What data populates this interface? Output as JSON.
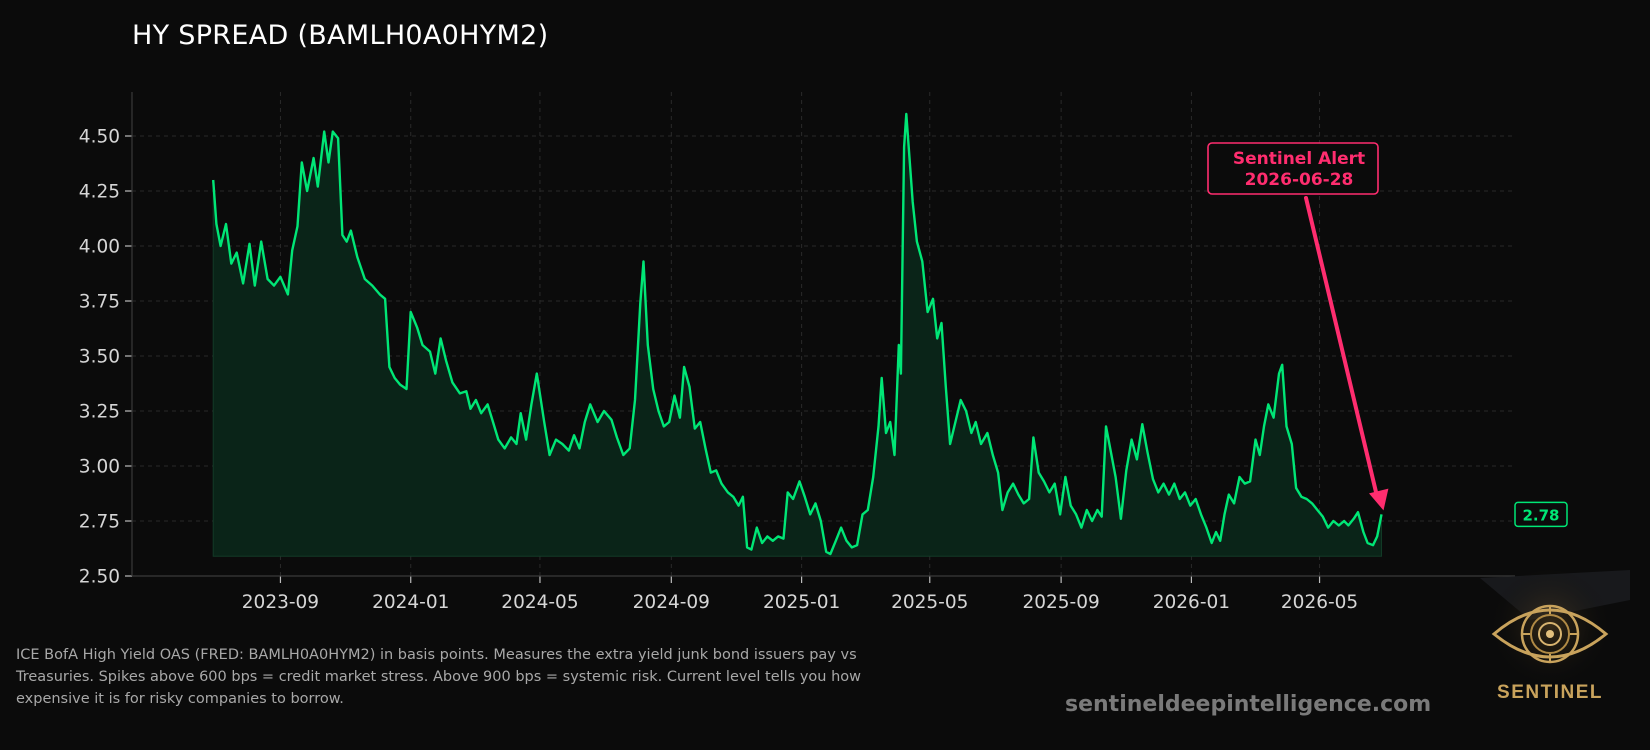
{
  "colors": {
    "background": "#0b0b0b",
    "line": "#00e676",
    "fill": "#0a2418",
    "alert": "#ff2d6f",
    "grid": "#2a2a2a",
    "text": "#d6d6d6",
    "logo_gold": "#c9a35c"
  },
  "title": "HY SPREAD (BAMLH0A0HYM2)",
  "description": "ICE BofA High Yield OAS (FRED: BAMLH0A0HYM2) in basis points. Measures the extra yield junk bond issuers pay vs Treasuries. Spikes above 600 bps = credit market stress. Above 900 bps = systemic risk. Current level tells you how expensive it is for risky companies to borrow.",
  "website": "sentineldeepintelligence.com",
  "logo": {
    "text": "SENTINEL",
    "icon": "eye-icon"
  },
  "chart_data": {
    "type": "area",
    "title": "HY SPREAD (BAMLH0A0HYM2)",
    "xlabel": "",
    "ylabel": "",
    "grid": true,
    "ylim": [
      2.5,
      4.7
    ],
    "xlim": [
      "2023-04-15",
      "2026-10-31"
    ],
    "x_ticks": [
      "2023-09",
      "2024-01",
      "2024-05",
      "2024-09",
      "2025-01",
      "2025-05",
      "2025-09",
      "2026-01",
      "2026-05"
    ],
    "y_ticks": [
      "2.50",
      "2.75",
      "3.00",
      "3.25",
      "3.50",
      "3.75",
      "4.00",
      "4.25",
      "4.50"
    ],
    "series": [
      {
        "points": [
          [
            "2023-06-30",
            4.3
          ],
          [
            "2023-07-03",
            4.1
          ],
          [
            "2023-07-07",
            4.0
          ],
          [
            "2023-07-12",
            4.1
          ],
          [
            "2023-07-17",
            3.92
          ],
          [
            "2023-07-22",
            3.97
          ],
          [
            "2023-07-28",
            3.83
          ],
          [
            "2023-08-03",
            4.01
          ],
          [
            "2023-08-08",
            3.82
          ],
          [
            "2023-08-14",
            4.02
          ],
          [
            "2023-08-20",
            3.85
          ],
          [
            "2023-08-26",
            3.82
          ],
          [
            "2023-09-01",
            3.86
          ],
          [
            "2023-09-08",
            3.78
          ],
          [
            "2023-09-12",
            3.98
          ],
          [
            "2023-09-17",
            4.09
          ],
          [
            "2023-09-21",
            4.38
          ],
          [
            "2023-09-26",
            4.25
          ],
          [
            "2023-10-02",
            4.4
          ],
          [
            "2023-10-06",
            4.27
          ],
          [
            "2023-10-12",
            4.52
          ],
          [
            "2023-10-16",
            4.38
          ],
          [
            "2023-10-20",
            4.52
          ],
          [
            "2023-10-25",
            4.49
          ],
          [
            "2023-10-29",
            4.05
          ],
          [
            "2023-11-02",
            4.02
          ],
          [
            "2023-11-06",
            4.07
          ],
          [
            "2023-11-12",
            3.95
          ],
          [
            "2023-11-19",
            3.85
          ],
          [
            "2023-11-26",
            3.82
          ],
          [
            "2023-12-03",
            3.78
          ],
          [
            "2023-12-08",
            3.76
          ],
          [
            "2023-12-12",
            3.45
          ],
          [
            "2023-12-17",
            3.4
          ],
          [
            "2023-12-22",
            3.37
          ],
          [
            "2023-12-28",
            3.35
          ],
          [
            "2024-01-01",
            3.7
          ],
          [
            "2024-01-07",
            3.63
          ],
          [
            "2024-01-12",
            3.55
          ],
          [
            "2024-01-19",
            3.52
          ],
          [
            "2024-01-24",
            3.42
          ],
          [
            "2024-01-29",
            3.58
          ],
          [
            "2024-02-03",
            3.48
          ],
          [
            "2024-02-09",
            3.38
          ],
          [
            "2024-02-16",
            3.33
          ],
          [
            "2024-02-22",
            3.34
          ],
          [
            "2024-02-26",
            3.26
          ],
          [
            "2024-03-02",
            3.3
          ],
          [
            "2024-03-07",
            3.24
          ],
          [
            "2024-03-13",
            3.28
          ],
          [
            "2024-03-18",
            3.2
          ],
          [
            "2024-03-23",
            3.12
          ],
          [
            "2024-03-29",
            3.08
          ],
          [
            "2024-04-04",
            3.13
          ],
          [
            "2024-04-09",
            3.1
          ],
          [
            "2024-04-13",
            3.24
          ],
          [
            "2024-04-18",
            3.12
          ],
          [
            "2024-04-23",
            3.28
          ],
          [
            "2024-04-28",
            3.42
          ],
          [
            "2024-05-05",
            3.2
          ],
          [
            "2024-05-10",
            3.05
          ],
          [
            "2024-05-16",
            3.12
          ],
          [
            "2024-05-22",
            3.1
          ],
          [
            "2024-05-28",
            3.07
          ],
          [
            "2024-06-02",
            3.14
          ],
          [
            "2024-06-07",
            3.08
          ],
          [
            "2024-06-12",
            3.2
          ],
          [
            "2024-06-17",
            3.28
          ],
          [
            "2024-06-24",
            3.2
          ],
          [
            "2024-06-30",
            3.25
          ],
          [
            "2024-07-07",
            3.21
          ],
          [
            "2024-07-12",
            3.13
          ],
          [
            "2024-07-18",
            3.05
          ],
          [
            "2024-07-24",
            3.08
          ],
          [
            "2024-07-29",
            3.3
          ],
          [
            "2024-08-03",
            3.74
          ],
          [
            "2024-08-06",
            3.93
          ],
          [
            "2024-08-10",
            3.55
          ],
          [
            "2024-08-15",
            3.35
          ],
          [
            "2024-08-20",
            3.25
          ],
          [
            "2024-08-25",
            3.18
          ],
          [
            "2024-08-30",
            3.2
          ],
          [
            "2024-09-04",
            3.32
          ],
          [
            "2024-09-09",
            3.22
          ],
          [
            "2024-09-13",
            3.45
          ],
          [
            "2024-09-18",
            3.36
          ],
          [
            "2024-09-23",
            3.17
          ],
          [
            "2024-09-28",
            3.2
          ],
          [
            "2024-10-03",
            3.08
          ],
          [
            "2024-10-08",
            2.97
          ],
          [
            "2024-10-13",
            2.98
          ],
          [
            "2024-10-18",
            2.92
          ],
          [
            "2024-10-24",
            2.88
          ],
          [
            "2024-10-29",
            2.86
          ],
          [
            "2024-11-03",
            2.82
          ],
          [
            "2024-11-07",
            2.86
          ],
          [
            "2024-11-11",
            2.63
          ],
          [
            "2024-11-15",
            2.62
          ],
          [
            "2024-11-20",
            2.72
          ],
          [
            "2024-11-25",
            2.65
          ],
          [
            "2024-11-30",
            2.68
          ],
          [
            "2024-12-05",
            2.66
          ],
          [
            "2024-12-10",
            2.68
          ],
          [
            "2024-12-15",
            2.67
          ],
          [
            "2024-12-19",
            2.88
          ],
          [
            "2024-12-24",
            2.85
          ],
          [
            "2024-12-30",
            2.93
          ],
          [
            "2025-01-04",
            2.86
          ],
          [
            "2025-01-09",
            2.78
          ],
          [
            "2025-01-14",
            2.83
          ],
          [
            "2025-01-19",
            2.75
          ],
          [
            "2025-01-24",
            2.61
          ],
          [
            "2025-01-28",
            2.6
          ],
          [
            "2025-02-02",
            2.66
          ],
          [
            "2025-02-07",
            2.72
          ],
          [
            "2025-02-12",
            2.66
          ],
          [
            "2025-02-17",
            2.63
          ],
          [
            "2025-02-22",
            2.64
          ],
          [
            "2025-02-27",
            2.78
          ],
          [
            "2025-03-04",
            2.8
          ],
          [
            "2025-03-09",
            2.95
          ],
          [
            "2025-03-14",
            3.18
          ],
          [
            "2025-03-17",
            3.4
          ],
          [
            "2025-03-21",
            3.15
          ],
          [
            "2025-03-25",
            3.2
          ],
          [
            "2025-03-29",
            3.05
          ],
          [
            "2025-04-02",
            3.55
          ],
          [
            "2025-04-04",
            3.42
          ],
          [
            "2025-04-07",
            4.45
          ],
          [
            "2025-04-09",
            4.6
          ],
          [
            "2025-04-12",
            4.4
          ],
          [
            "2025-04-15",
            4.2
          ],
          [
            "2025-04-19",
            4.02
          ],
          [
            "2025-04-24",
            3.93
          ],
          [
            "2025-04-29",
            3.7
          ],
          [
            "2025-05-04",
            3.76
          ],
          [
            "2025-05-08",
            3.58
          ],
          [
            "2025-05-12",
            3.65
          ],
          [
            "2025-05-16",
            3.36
          ],
          [
            "2025-05-20",
            3.1
          ],
          [
            "2025-05-25",
            3.2
          ],
          [
            "2025-05-30",
            3.3
          ],
          [
            "2025-06-04",
            3.25
          ],
          [
            "2025-06-09",
            3.15
          ],
          [
            "2025-06-13",
            3.2
          ],
          [
            "2025-06-18",
            3.1
          ],
          [
            "2025-06-24",
            3.15
          ],
          [
            "2025-06-29",
            3.05
          ],
          [
            "2025-07-04",
            2.97
          ],
          [
            "2025-07-08",
            2.8
          ],
          [
            "2025-07-13",
            2.88
          ],
          [
            "2025-07-18",
            2.92
          ],
          [
            "2025-07-23",
            2.87
          ],
          [
            "2025-07-28",
            2.83
          ],
          [
            "2025-08-02",
            2.85
          ],
          [
            "2025-08-06",
            3.13
          ],
          [
            "2025-08-11",
            2.97
          ],
          [
            "2025-08-16",
            2.93
          ],
          [
            "2025-08-21",
            2.88
          ],
          [
            "2025-08-26",
            2.92
          ],
          [
            "2025-08-31",
            2.78
          ],
          [
            "2025-09-05",
            2.95
          ],
          [
            "2025-09-10",
            2.82
          ],
          [
            "2025-09-15",
            2.78
          ],
          [
            "2025-09-20",
            2.72
          ],
          [
            "2025-09-25",
            2.8
          ],
          [
            "2025-09-30",
            2.75
          ],
          [
            "2025-10-05",
            2.8
          ],
          [
            "2025-10-09",
            2.77
          ],
          [
            "2025-10-13",
            3.18
          ],
          [
            "2025-10-17",
            3.08
          ],
          [
            "2025-10-22",
            2.95
          ],
          [
            "2025-10-27",
            2.76
          ],
          [
            "2025-11-01",
            2.98
          ],
          [
            "2025-11-06",
            3.12
          ],
          [
            "2025-11-11",
            3.03
          ],
          [
            "2025-11-16",
            3.19
          ],
          [
            "2025-11-21",
            3.06
          ],
          [
            "2025-11-26",
            2.94
          ],
          [
            "2025-12-01",
            2.88
          ],
          [
            "2025-12-06",
            2.92
          ],
          [
            "2025-12-11",
            2.87
          ],
          [
            "2025-12-16",
            2.92
          ],
          [
            "2025-12-21",
            2.85
          ],
          [
            "2025-12-26",
            2.88
          ],
          [
            "2025-12-31",
            2.82
          ],
          [
            "2026-01-05",
            2.85
          ],
          [
            "2026-01-10",
            2.78
          ],
          [
            "2026-01-15",
            2.72
          ],
          [
            "2026-01-20",
            2.65
          ],
          [
            "2026-01-24",
            2.7
          ],
          [
            "2026-01-28",
            2.66
          ],
          [
            "2026-02-01",
            2.78
          ],
          [
            "2026-02-05",
            2.87
          ],
          [
            "2026-02-10",
            2.83
          ],
          [
            "2026-02-15",
            2.95
          ],
          [
            "2026-02-20",
            2.92
          ],
          [
            "2026-02-25",
            2.93
          ],
          [
            "2026-03-02",
            3.12
          ],
          [
            "2026-03-06",
            3.05
          ],
          [
            "2026-03-10",
            3.18
          ],
          [
            "2026-03-14",
            3.28
          ],
          [
            "2026-03-19",
            3.22
          ],
          [
            "2026-03-24",
            3.42
          ],
          [
            "2026-03-27",
            3.46
          ],
          [
            "2026-03-31",
            3.18
          ],
          [
            "2026-04-05",
            3.1
          ],
          [
            "2026-04-09",
            2.9
          ],
          [
            "2026-04-14",
            2.86
          ],
          [
            "2026-04-19",
            2.85
          ],
          [
            "2026-04-24",
            2.83
          ],
          [
            "2026-04-29",
            2.8
          ],
          [
            "2026-05-04",
            2.77
          ],
          [
            "2026-05-09",
            2.72
          ],
          [
            "2026-05-14",
            2.75
          ],
          [
            "2026-05-19",
            2.73
          ],
          [
            "2026-05-24",
            2.75
          ],
          [
            "2026-05-28",
            2.73
          ],
          [
            "2026-06-02",
            2.76
          ],
          [
            "2026-06-06",
            2.79
          ],
          [
            "2026-06-11",
            2.7
          ],
          [
            "2026-06-15",
            2.65
          ],
          [
            "2026-06-20",
            2.64
          ],
          [
            "2026-06-24",
            2.68
          ],
          [
            "2026-06-28",
            2.78
          ]
        ]
      }
    ],
    "last_value_label": "2.78",
    "annotation": {
      "text_line1": "Sentinel Alert",
      "text_line2": "2026-06-28",
      "target_date": "2026-06-28",
      "target_value": 2.78
    }
  }
}
